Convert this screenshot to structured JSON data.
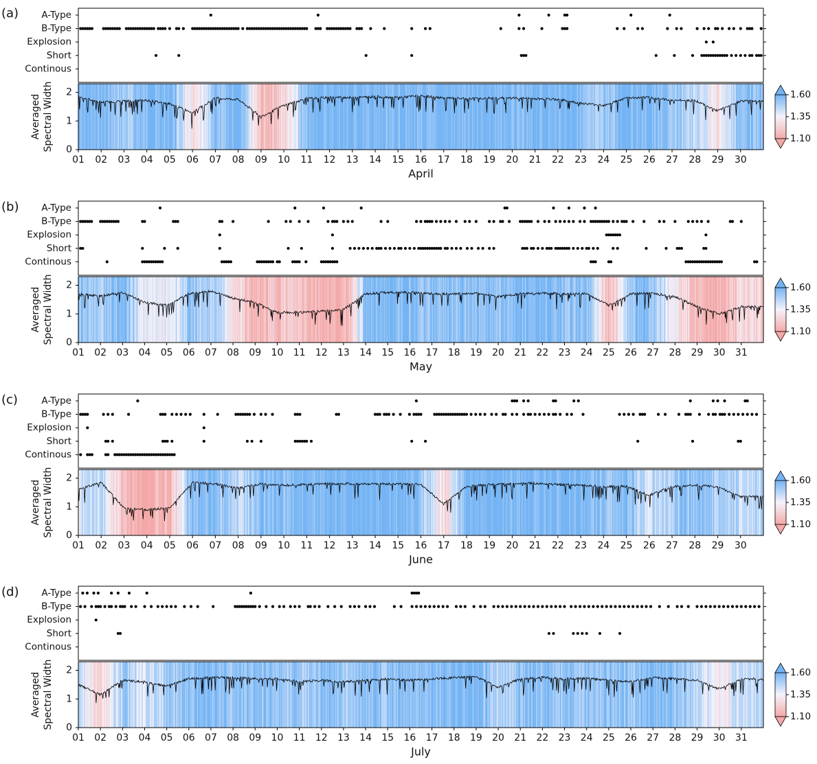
{
  "figure": {
    "event_labels": [
      "A-Type",
      "B-Type",
      "Explosion",
      "Short",
      "Continous"
    ],
    "ylabel_line1": "Averaged",
    "ylabel_line2": "Spectral Width",
    "colorbar": {
      "ticks": [
        "1.60",
        "1.35",
        "1.10"
      ],
      "range": [
        1.1,
        1.6
      ],
      "low_color": "#f4a8a8",
      "mid_color": "#f5f3fa",
      "high_color": "#74b4f4"
    },
    "colors": {
      "line": "#000000",
      "event": "#000000"
    }
  },
  "chart_data": [
    {
      "panel": "(a)",
      "type": "scatter+line",
      "xlabel": "April",
      "days": 30,
      "ylim": [
        0,
        2.3
      ],
      "yticks": [
        "0",
        "1",
        "2"
      ],
      "events": {
        "A-Type": [
          6.8,
          11.5,
          20.3,
          21.6,
          22.3,
          22.4,
          25.2,
          26.9
        ],
        "B-Type": [
          1.1,
          1.2,
          1.3,
          1.4,
          1.5,
          1.6,
          2.1,
          2.2,
          2.3,
          2.4,
          2.5,
          2.6,
          2.7,
          2.8,
          3.1,
          3.2,
          3.3,
          3.4,
          3.5,
          3.6,
          3.7,
          3.8,
          3.9,
          4.0,
          4.1,
          4.2,
          4.3,
          4.5,
          4.6,
          4.7,
          4.8,
          5.0,
          5.3,
          5.4,
          5.6,
          6.0,
          6.1,
          6.2,
          6.3,
          6.4,
          6.5,
          6.6,
          6.7,
          6.8,
          6.9,
          7.0,
          7.1,
          7.2,
          7.3,
          7.4,
          7.5,
          7.6,
          7.7,
          7.8,
          7.9,
          8.0,
          8.2,
          8.4,
          8.5,
          8.6,
          8.7,
          8.8,
          8.9,
          9.0,
          9.1,
          9.2,
          9.3,
          9.4,
          9.5,
          9.6,
          9.7,
          9.8,
          9.9,
          10.0,
          10.1,
          10.2,
          10.3,
          10.4,
          10.5,
          10.6,
          10.7,
          10.8,
          10.9,
          11.0,
          11.4,
          11.5,
          11.6,
          11.9,
          12.0,
          12.1,
          12.2,
          12.3,
          12.4,
          12.5,
          12.6,
          12.7,
          12.8,
          12.9,
          13.2,
          13.3,
          13.4,
          13.8,
          14.4,
          15.6,
          16.2,
          16.4,
          19.5,
          20.3,
          20.5,
          21.3,
          22.2,
          22.3,
          22.4,
          24.6,
          24.9,
          25.5,
          25.7,
          26.8,
          27.2,
          27.4,
          28.1,
          28.4,
          28.6,
          28.9,
          29.0,
          29.2,
          29.5,
          29.7,
          30.0,
          30.3,
          30.4,
          30.5,
          30.9
        ],
        "Explosion": [
          28.5,
          28.8
        ],
        "Short": [
          4.4,
          5.4,
          13.6,
          15.6,
          20.4,
          20.5,
          20.6,
          26.3,
          27.1,
          27.9,
          28.3,
          28.4,
          28.5,
          28.6,
          28.7,
          28.8,
          28.9,
          29.0,
          29.1,
          29.2,
          29.3,
          29.4,
          29.6,
          29.8,
          30.0,
          30.2,
          30.4,
          30.5,
          30.7,
          30.8,
          30.9
        ],
        "Continous": []
      },
      "spectral_width": [
        1.85,
        1.65,
        1.7,
        1.72,
        1.6,
        1.3,
        1.8,
        1.75,
        1.15,
        1.55,
        1.78,
        1.82,
        1.82,
        1.85,
        1.82,
        1.88,
        1.8,
        1.78,
        1.8,
        1.8,
        1.78,
        1.75,
        1.62,
        1.55,
        1.8,
        1.82,
        1.72,
        1.72,
        1.35,
        1.7
      ],
      "color_values": [
        1.6,
        1.6,
        1.5,
        1.58,
        1.6,
        1.3,
        1.55,
        1.6,
        1.15,
        1.25,
        1.6,
        1.6,
        1.6,
        1.6,
        1.6,
        1.6,
        1.6,
        1.6,
        1.6,
        1.6,
        1.6,
        1.6,
        1.58,
        1.5,
        1.6,
        1.6,
        1.55,
        1.45,
        1.3,
        1.55
      ]
    },
    {
      "panel": "(b)",
      "type": "scatter+line",
      "xlabel": "May",
      "days": 31,
      "ylim": [
        0,
        2.3
      ],
      "yticks": [
        "0",
        "1",
        "2"
      ],
      "events": {
        "A-Type": [
          4.7,
          10.8,
          12.1,
          13.8,
          20.3,
          20.4,
          22.5,
          23.2,
          23.9,
          24.4
        ],
        "B-Type": [
          1.1,
          1.2,
          1.3,
          1.4,
          1.5,
          1.6,
          2.0,
          2.1,
          2.2,
          2.3,
          2.4,
          2.5,
          2.6,
          2.7,
          2.8,
          3.9,
          4.0,
          5.3,
          5.4,
          5.5,
          7.4,
          7.5,
          8.0,
          9.6,
          10.4,
          10.6,
          11.0,
          11.4,
          12.3,
          12.5,
          12.6,
          12.7,
          13.0,
          13.2,
          13.4,
          14.7,
          15.0,
          16.3,
          16.5,
          16.7,
          16.8,
          16.9,
          17.0,
          17.2,
          17.4,
          17.6,
          17.8,
          18.1,
          18.5,
          18.7,
          19.0,
          19.6,
          19.8,
          20.1,
          20.2,
          20.5,
          21.0,
          21.1,
          21.2,
          21.3,
          21.4,
          21.5,
          21.8,
          22.1,
          22.3,
          22.6,
          22.8,
          23.0,
          23.2,
          23.4,
          23.7,
          23.9,
          24.2,
          24.3,
          24.4,
          24.5,
          24.6,
          24.7,
          24.8,
          24.9,
          25.0,
          25.2,
          25.4,
          25.6,
          25.7,
          25.8,
          26.1,
          26.6,
          27.3,
          27.5,
          28.0,
          28.6,
          28.8,
          29.0,
          29.2,
          29.5,
          30.5,
          30.6,
          31.0
        ],
        "Explosion": [
          7.4,
          12.5,
          24.9,
          25.0,
          25.1,
          25.2,
          25.3,
          25.4,
          25.5,
          29.4
        ],
        "Short": [
          1.1,
          1.2,
          3.9,
          4.9,
          5.5,
          7.4,
          10.5,
          11.1,
          12.5,
          13.3,
          13.5,
          13.7,
          13.9,
          14.1,
          14.3,
          14.5,
          14.6,
          14.7,
          14.9,
          15.1,
          15.3,
          15.5,
          15.6,
          15.8,
          16.0,
          16.2,
          16.4,
          16.5,
          16.6,
          16.7,
          16.8,
          16.9,
          17.0,
          17.1,
          17.2,
          17.3,
          17.4,
          17.6,
          17.7,
          17.9,
          18.1,
          18.3,
          18.6,
          18.8,
          19.1,
          19.3,
          19.6,
          19.8,
          21.1,
          21.2,
          21.3,
          21.5,
          21.6,
          21.8,
          22.0,
          22.2,
          22.3,
          22.4,
          22.6,
          22.7,
          22.8,
          22.9,
          23.0,
          23.1,
          23.2,
          23.4,
          23.6,
          23.8,
          24.0,
          24.1,
          24.3,
          24.5,
          25.2,
          25.4,
          26.7,
          27.6,
          28.1,
          28.2,
          28.3,
          29.3,
          29.4
        ],
        "Continous": [
          2.3,
          3.9,
          4.0,
          4.1,
          4.2,
          4.3,
          4.4,
          4.5,
          4.6,
          4.7,
          4.8,
          7.5,
          7.6,
          7.7,
          7.8,
          7.9,
          9.1,
          9.2,
          9.3,
          9.4,
          9.5,
          9.6,
          9.7,
          9.8,
          10.0,
          10.1,
          10.7,
          10.8,
          10.9,
          11.0,
          11.3,
          12.0,
          12.1,
          12.2,
          12.3,
          12.4,
          12.5,
          12.6,
          12.7,
          24.2,
          24.3,
          24.4,
          25.0,
          25.1,
          28.5,
          28.6,
          28.7,
          28.8,
          28.9,
          29.0,
          29.1,
          29.2,
          29.3,
          29.4,
          29.5,
          29.6,
          29.7,
          29.8,
          29.9,
          30.0,
          30.1,
          31.6,
          31.7
        ]
      },
      "spectral_width": [
        1.7,
        1.62,
        1.75,
        1.4,
        1.3,
        1.7,
        1.8,
        1.55,
        1.4,
        1.05,
        1.05,
        1.1,
        1.15,
        1.7,
        1.75,
        1.75,
        1.7,
        1.7,
        1.72,
        1.6,
        1.7,
        1.72,
        1.7,
        1.7,
        1.3,
        1.7,
        1.72,
        1.6,
        1.25,
        1.0,
        1.25
      ],
      "color_values": [
        1.55,
        1.5,
        1.6,
        1.35,
        1.35,
        1.5,
        1.5,
        1.3,
        1.12,
        1.2,
        1.2,
        1.15,
        1.1,
        1.55,
        1.6,
        1.55,
        1.55,
        1.55,
        1.55,
        1.55,
        1.55,
        1.6,
        1.55,
        1.55,
        1.15,
        1.55,
        1.55,
        1.35,
        1.15,
        1.12,
        1.25
      ]
    },
    {
      "panel": "(c)",
      "type": "scatter+line",
      "xlabel": "June",
      "days": 30,
      "ylim": [
        0,
        2.3
      ],
      "yticks": [
        "0",
        "1",
        "2"
      ],
      "events": {
        "A-Type": [
          3.6,
          15.8,
          20.0,
          20.1,
          20.2,
          20.5,
          20.7,
          21.8,
          21.9,
          22.7,
          22.9,
          27.8,
          28.8,
          29.0,
          29.3,
          30.2,
          30.3
        ],
        "B-Type": [
          1.1,
          1.2,
          1.3,
          1.4,
          2.1,
          2.3,
          2.5,
          3.2,
          4.6,
          4.7,
          4.8,
          5.1,
          5.3,
          5.5,
          5.7,
          5.9,
          6.5,
          7.1,
          7.9,
          8.0,
          8.1,
          8.2,
          8.3,
          8.4,
          8.5,
          8.7,
          9.0,
          9.2,
          9.5,
          10.5,
          10.6,
          10.7,
          12.3,
          12.4,
          14.0,
          14.1,
          14.2,
          14.4,
          14.5,
          14.6,
          14.8,
          15.1,
          15.5,
          15.7,
          15.8,
          15.9,
          16.0,
          16.6,
          16.7,
          16.8,
          16.9,
          17.0,
          17.1,
          17.2,
          17.3,
          17.4,
          17.5,
          17.6,
          17.7,
          17.8,
          17.9,
          18.0,
          18.2,
          18.4,
          18.6,
          18.8,
          19.1,
          19.3,
          19.6,
          19.7,
          20.0,
          20.2,
          20.5,
          20.7,
          20.8,
          21.0,
          21.2,
          21.4,
          21.6,
          21.8,
          21.9,
          22.1,
          22.4,
          22.6,
          23.1,
          24.7,
          24.9,
          25.1,
          25.3,
          25.6,
          25.7,
          25.8,
          26.4,
          26.7,
          27.3,
          27.6,
          27.7,
          27.8,
          28.2,
          28.6,
          28.8,
          28.9,
          29.1,
          29.2,
          29.3,
          29.5,
          29.7,
          29.9,
          30.1,
          30.3,
          30.5,
          30.7
        ],
        "Explosion": [
          1.4,
          6.5
        ],
        "Short": [
          2.2,
          2.3,
          2.5,
          4.7,
          4.8,
          4.9,
          5.1,
          6.5,
          8.4,
          8.6,
          9.0,
          10.5,
          10.6,
          10.7,
          10.8,
          10.9,
          11.0,
          11.2,
          15.6,
          16.2,
          25.5,
          27.9,
          29.9,
          30.0
        ],
        "Continous": [
          1.1,
          1.4,
          1.5,
          1.6,
          2.2,
          2.3,
          2.6,
          2.7,
          2.8,
          2.9,
          3.0,
          3.1,
          3.2,
          3.3,
          3.4,
          3.5,
          3.6,
          3.7,
          3.8,
          3.9,
          4.0,
          4.1,
          4.2,
          4.3,
          4.4,
          4.5,
          4.6,
          4.7,
          4.8,
          4.9,
          5.0,
          5.1,
          5.2
        ]
      },
      "spectral_width": [
        1.6,
        1.85,
        0.95,
        0.9,
        0.95,
        1.85,
        1.8,
        1.65,
        1.8,
        1.75,
        1.78,
        1.8,
        1.8,
        1.8,
        1.8,
        1.78,
        1.1,
        1.7,
        1.78,
        1.8,
        1.82,
        1.78,
        1.75,
        1.7,
        1.72,
        1.4,
        1.7,
        1.75,
        1.7,
        1.35
      ],
      "color_values": [
        1.4,
        1.45,
        1.15,
        1.1,
        1.15,
        1.6,
        1.55,
        1.45,
        1.55,
        1.55,
        1.6,
        1.6,
        1.6,
        1.6,
        1.6,
        1.55,
        1.25,
        1.6,
        1.6,
        1.6,
        1.6,
        1.6,
        1.6,
        1.55,
        1.55,
        1.42,
        1.5,
        1.55,
        1.5,
        1.45
      ]
    },
    {
      "panel": "(d)",
      "type": "scatter+line",
      "xlabel": "July",
      "days": 31,
      "ylim": [
        0,
        2.3
      ],
      "yticks": [
        "0",
        "1",
        "2"
      ],
      "events": {
        "A-Type": [
          1.2,
          1.4,
          1.7,
          1.9,
          2.5,
          2.8,
          3.3,
          4.1,
          8.8,
          16.1,
          16.2,
          16.3,
          16.4
        ],
        "B-Type": [
          1.1,
          1.3,
          1.6,
          1.8,
          1.9,
          2.0,
          2.2,
          2.4,
          2.5,
          2.7,
          2.9,
          3.0,
          3.1,
          3.4,
          3.6,
          4.0,
          4.3,
          4.6,
          4.8,
          5.0,
          5.2,
          5.4,
          5.8,
          6.1,
          6.4,
          7.1,
          8.1,
          8.2,
          8.3,
          8.4,
          8.5,
          8.6,
          8.7,
          8.8,
          8.9,
          9.0,
          9.2,
          9.5,
          9.8,
          10.1,
          10.3,
          10.6,
          10.8,
          11.0,
          11.4,
          11.5,
          11.7,
          11.9,
          12.3,
          12.6,
          12.9,
          13.3,
          13.5,
          13.7,
          14.0,
          14.2,
          14.4,
          15.3,
          15.6,
          16.1,
          16.3,
          16.5,
          16.7,
          16.9,
          17.1,
          17.3,
          17.5,
          17.7,
          18.1,
          18.3,
          18.5,
          18.9,
          19.2,
          19.4,
          19.8,
          20.0,
          20.2,
          20.4,
          20.6,
          20.8,
          21.0,
          21.2,
          21.4,
          21.6,
          21.8,
          22.0,
          22.2,
          22.4,
          22.6,
          22.8,
          23.0,
          23.3,
          23.5,
          23.7,
          23.9,
          24.1,
          24.3,
          24.5,
          24.7,
          24.9,
          25.1,
          25.3,
          25.5,
          25.7,
          25.9,
          26.1,
          26.3,
          26.5,
          26.7,
          26.9,
          27.3,
          27.7,
          28.1,
          28.3,
          28.6,
          29.0,
          29.2,
          29.4,
          29.6,
          29.8,
          30.0,
          30.2,
          30.4,
          30.6,
          30.8,
          31.0,
          31.2,
          31.4,
          31.6,
          31.8
        ],
        "Explosion": [
          1.8
        ],
        "Short": [
          2.8,
          2.9,
          22.3,
          22.5,
          23.4,
          23.6,
          23.8,
          24.0,
          24.6,
          25.5
        ],
        "Continous": []
      },
      "spectral_width": [
        1.5,
        1.15,
        1.65,
        1.6,
        1.45,
        1.7,
        1.75,
        1.75,
        1.7,
        1.7,
        1.6,
        1.65,
        1.6,
        1.65,
        1.7,
        1.65,
        1.7,
        1.75,
        1.78,
        1.4,
        1.7,
        1.75,
        1.7,
        1.72,
        1.65,
        1.6,
        1.75,
        1.7,
        1.65,
        1.35,
        1.7
      ],
      "color_values": [
        1.45,
        1.25,
        1.5,
        1.42,
        1.5,
        1.55,
        1.6,
        1.55,
        1.55,
        1.55,
        1.5,
        1.55,
        1.5,
        1.55,
        1.55,
        1.55,
        1.55,
        1.6,
        1.6,
        1.45,
        1.55,
        1.55,
        1.55,
        1.55,
        1.55,
        1.5,
        1.6,
        1.55,
        1.45,
        1.3,
        1.45
      ]
    }
  ]
}
